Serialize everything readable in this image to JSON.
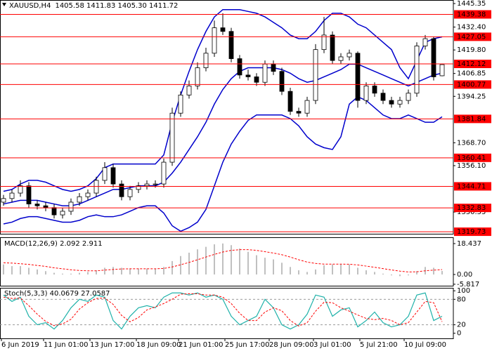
{
  "chart_data": [
    {
      "type": "candlestick",
      "title": "XAUUSD,H4",
      "subtitle": "1405.58 1411.83 1405.30 1411.72",
      "up_color": "#ffffff",
      "down_color": "#000000",
      "open": [
        1336,
        1338,
        1341,
        1345,
        1335,
        1334,
        1333,
        1329,
        1331,
        1336,
        1339,
        1341,
        1348,
        1355,
        1346,
        1339,
        1343,
        1345,
        1346,
        1346,
        1358,
        1385,
        1395,
        1400,
        1410,
        1418,
        1432,
        1430,
        1415,
        1406,
        1405,
        1402,
        1412,
        1408,
        1397,
        1386,
        1385,
        1392,
        1420,
        1428,
        1414,
        1416,
        1418,
        1392,
        1400,
        1396,
        1392,
        1390,
        1392,
        1396,
        1422,
        1426,
        1405.58
      ],
      "high": [
        1340,
        1343,
        1348,
        1347,
        1337,
        1336,
        1335,
        1333,
        1338,
        1341,
        1343,
        1350,
        1358,
        1357,
        1348,
        1345,
        1347,
        1348,
        1348,
        1360,
        1388,
        1397,
        1403,
        1413,
        1421,
        1436,
        1440,
        1432,
        1417,
        1409,
        1407,
        1414,
        1414,
        1410,
        1399,
        1388,
        1394,
        1423,
        1438,
        1430,
        1418,
        1420,
        1419,
        1402,
        1402,
        1398,
        1394,
        1394,
        1398,
        1424,
        1428,
        1427,
        1411.83
      ],
      "low": [
        1334,
        1336,
        1339,
        1333,
        1332,
        1331,
        1327,
        1327,
        1329,
        1334,
        1337,
        1339,
        1346,
        1344,
        1337,
        1337,
        1341,
        1343,
        1344,
        1344,
        1356,
        1383,
        1393,
        1398,
        1408,
        1416,
        1428,
        1413,
        1404,
        1403,
        1400,
        1400,
        1406,
        1395,
        1384,
        1383,
        1383,
        1390,
        1418,
        1412,
        1412,
        1414,
        1388,
        1390,
        1394,
        1390,
        1388,
        1388,
        1390,
        1394,
        1420,
        1403,
        1405.3
      ],
      "close": [
        1338,
        1341,
        1345,
        1335,
        1334,
        1333,
        1329,
        1331,
        1336,
        1339,
        1341,
        1348,
        1355,
        1346,
        1339,
        1343,
        1345,
        1346,
        1346,
        1358,
        1385,
        1395,
        1400,
        1410,
        1418,
        1432,
        1430,
        1415,
        1406,
        1405,
        1402,
        1412,
        1408,
        1397,
        1386,
        1385,
        1392,
        1420,
        1428,
        1414,
        1416,
        1418,
        1392,
        1400,
        1396,
        1392,
        1390,
        1392,
        1396,
        1422,
        1426,
        1405,
        1411.72
      ],
      "bands": {
        "color": "#0000cc",
        "upper": [
          1342,
          1343,
          1346,
          1348,
          1348,
          1347,
          1345,
          1343,
          1342,
          1343,
          1345,
          1349,
          1355,
          1357,
          1357,
          1357,
          1357,
          1357,
          1357,
          1362,
          1380,
          1395,
          1408,
          1420,
          1430,
          1438,
          1442,
          1442,
          1442,
          1441,
          1440,
          1438,
          1435,
          1432,
          1428,
          1426,
          1426,
          1430,
          1436,
          1440,
          1440,
          1438,
          1434,
          1432,
          1428,
          1424,
          1420,
          1410,
          1404,
          1414,
          1424,
          1426,
          1427
        ],
        "middle": [
          1335,
          1336,
          1337,
          1337,
          1337,
          1336,
          1335,
          1334,
          1334,
          1335,
          1337,
          1339,
          1341,
          1343,
          1343,
          1344,
          1345,
          1345,
          1345,
          1347,
          1352,
          1358,
          1365,
          1372,
          1380,
          1390,
          1398,
          1404,
          1408,
          1410,
          1410,
          1410,
          1410,
          1409,
          1407,
          1404,
          1402,
          1403,
          1405,
          1407,
          1409,
          1412,
          1412,
          1410,
          1408,
          1406,
          1404,
          1402,
          1400,
          1402,
          1404,
          1406,
          1407
        ],
        "lower": [
          1324,
          1325,
          1327,
          1328,
          1328,
          1327,
          1326,
          1325,
          1325,
          1326,
          1328,
          1329,
          1328,
          1328,
          1329,
          1331,
          1333,
          1334,
          1334,
          1330,
          1323,
          1320,
          1322,
          1325,
          1332,
          1345,
          1358,
          1368,
          1375,
          1381,
          1384,
          1384,
          1384,
          1384,
          1382,
          1378,
          1372,
          1368,
          1366,
          1365,
          1372,
          1390,
          1394,
          1392,
          1388,
          1384,
          1382,
          1382,
          1384,
          1382,
          1380,
          1380,
          1383
        ]
      },
      "levels": {
        "color": "#ff0000",
        "values": [
          1439.38,
          1427.05,
          1412.12,
          1400.77,
          1381.84,
          1360.41,
          1344.71,
          1332.83,
          1319.73
        ]
      },
      "ylim": [
        1318.6,
        1447.3
      ],
      "yticks": [
        1445.35,
        {
          "value": 1432.4,
          "label": "1432.40"
        },
        {
          "value": 1419.8,
          "label": "1419.80"
        },
        1406.85,
        1394.25,
        {
          "value": 1368.7,
          "label": "1368.70"
        },
        {
          "value": 1356.1,
          "label": "1356.10"
        },
        1330.55
      ]
    },
    {
      "type": "macd",
      "title": "MACD(12,26,9) 2.092 2.911",
      "histogram": {
        "color": "#c0c0c0",
        "values": [
          6,
          5,
          5,
          4,
          3,
          2,
          1,
          0.5,
          0.5,
          1,
          1.5,
          2.5,
          4,
          4.5,
          4,
          3.5,
          3.5,
          3.5,
          3.5,
          4.5,
          8,
          11,
          13,
          15,
          16.5,
          18,
          18.5,
          17.5,
          15.5,
          13.5,
          11.5,
          10,
          9,
          7,
          4.5,
          2.5,
          1.5,
          3,
          5.5,
          6,
          6,
          6,
          4,
          2.5,
          1.5,
          0.5,
          -0.5,
          -1,
          -0.5,
          2,
          4.5,
          4,
          2.092
        ]
      },
      "signal": {
        "color": "#ff0000",
        "values": [
          7,
          6.8,
          6.4,
          6,
          5.4,
          4.8,
          4,
          3.4,
          2.8,
          2.4,
          2.2,
          2.2,
          2.6,
          3,
          3.3,
          3.4,
          3.4,
          3.4,
          3.4,
          3.6,
          4.5,
          5.8,
          7.2,
          8.8,
          10.4,
          12,
          13.4,
          14.4,
          14.8,
          14.8,
          14.4,
          13.6,
          12.8,
          11.8,
          10.4,
          8.8,
          7.4,
          6.6,
          6.2,
          6.2,
          6.2,
          6.1,
          5.7,
          5,
          4.3,
          3.5,
          2.7,
          2,
          1.5,
          1.6,
          2.2,
          2.6,
          2.911
        ]
      },
      "ylim": [
        -6.7,
        22.2
      ],
      "yticks": [
        18.437,
        {
          "value": 0,
          "label": "0.00"
        },
        -5.817
      ]
    },
    {
      "type": "stochastic",
      "title": "Stoch(5,3,3) 40.0679 27.0587",
      "k": {
        "color": "#20b2aa",
        "values": [
          90,
          75,
          85,
          40,
          20,
          25,
          10,
          30,
          60,
          80,
          75,
          90,
          85,
          30,
          10,
          40,
          60,
          65,
          60,
          85,
          95,
          95,
          90,
          95,
          85,
          90,
          80,
          40,
          20,
          30,
          40,
          80,
          60,
          20,
          10,
          20,
          45,
          90,
          85,
          40,
          55,
          60,
          15,
          30,
          50,
          25,
          15,
          20,
          40,
          90,
          95,
          30,
          40.0679
        ]
      },
      "d": {
        "color": "#ff0000",
        "values": [
          85,
          82,
          83,
          65,
          45,
          28,
          18,
          22,
          33,
          57,
          72,
          82,
          83,
          68,
          42,
          27,
          37,
          55,
          62,
          70,
          80,
          92,
          93,
          93,
          90,
          90,
          85,
          70,
          47,
          30,
          30,
          50,
          60,
          53,
          30,
          17,
          25,
          52,
          73,
          72,
          60,
          52,
          43,
          35,
          32,
          35,
          30,
          20,
          25,
          50,
          75,
          72,
          27.0587
        ]
      },
      "ylim": [
        -12,
        107
      ],
      "yticks": [
        0,
        20,
        80,
        100
      ],
      "levels": [
        20,
        80
      ],
      "xticks": [
        {
          "value": 0,
          "label": "6 Jun 2019"
        },
        {
          "value": 5,
          "label": "11 Jun 01:00"
        },
        {
          "value": 10.5,
          "label": "13 Jun 17:00"
        },
        {
          "value": 16,
          "label": "18 Jun 09:00"
        },
        {
          "value": 21,
          "label": "21 Jun 01:00"
        },
        {
          "value": 26.5,
          "label": "25 Jun 17:00"
        },
        {
          "value": 31.75,
          "label": "28 Jun 09:00"
        },
        {
          "value": 37,
          "label": "3 Jul 01:00"
        },
        {
          "value": 42.5,
          "label": "5 Jul 21:00"
        },
        {
          "value": 47.75,
          "label": "10 Jul 09:00"
        }
      ]
    }
  ]
}
